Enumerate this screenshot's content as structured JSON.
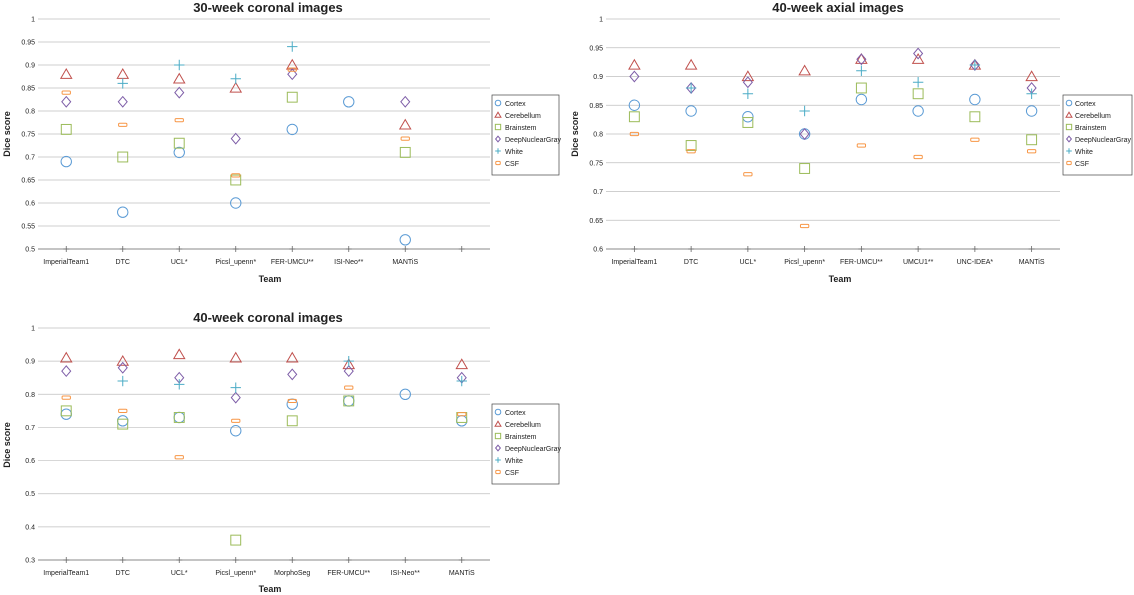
{
  "chart_data": [
    {
      "type": "scatter",
      "title": "30-week coronal images",
      "xlabel": "Team",
      "ylabel": "Dice score",
      "ylim": [
        0.5,
        1
      ],
      "yticks": [
        0.5,
        0.55,
        0.6,
        0.65,
        0.7,
        0.75,
        0.8,
        0.85,
        0.9,
        0.95,
        1
      ],
      "categories": [
        "ImperialTeam1",
        "DTC",
        "UCL*",
        "Picsl_upenn*",
        "FER-UMCU**",
        "ISI-Neo**",
        "MANTiS"
      ],
      "series": [
        {
          "name": "Cortex",
          "values": [
            0.69,
            0.58,
            0.71,
            0.6,
            0.76,
            0.82,
            0.52
          ]
        },
        {
          "name": "Cerebellum",
          "values": [
            0.88,
            0.88,
            0.87,
            0.85,
            0.9,
            null,
            0.77
          ]
        },
        {
          "name": "Brainstem",
          "values": [
            0.76,
            0.7,
            0.73,
            0.65,
            0.83,
            null,
            0.71
          ]
        },
        {
          "name": "DeepNuclearGray",
          "values": [
            0.82,
            0.82,
            0.84,
            0.74,
            0.88,
            null,
            0.82
          ]
        },
        {
          "name": "White",
          "values": [
            null,
            0.86,
            0.9,
            0.87,
            0.94,
            null,
            null
          ]
        },
        {
          "name": "CSF",
          "values": [
            0.84,
            0.77,
            0.78,
            0.66,
            0.89,
            null,
            0.74
          ]
        }
      ]
    },
    {
      "type": "scatter",
      "title": "40-week axial images",
      "xlabel": "Team",
      "ylabel": "Dice score",
      "ylim": [
        0.6,
        1
      ],
      "yticks": [
        0.6,
        0.65,
        0.7,
        0.75,
        0.8,
        0.85,
        0.9,
        0.95,
        1
      ],
      "categories": [
        "ImperialTeam1",
        "DTC",
        "UCL*",
        "Picsl_upenn*",
        "FER-UMCU**",
        "UMCU1**",
        "UNC-IDEA*",
        "MANTiS"
      ],
      "series": [
        {
          "name": "Cortex",
          "values": [
            0.85,
            0.84,
            0.83,
            0.8,
            0.86,
            0.84,
            0.86,
            0.84
          ]
        },
        {
          "name": "Cerebellum",
          "values": [
            0.92,
            0.92,
            0.9,
            0.91,
            0.93,
            0.93,
            0.92,
            0.9
          ]
        },
        {
          "name": "Brainstem",
          "values": [
            0.83,
            0.78,
            0.82,
            0.74,
            0.88,
            0.87,
            0.83,
            0.79
          ]
        },
        {
          "name": "DeepNuclearGray",
          "values": [
            0.9,
            0.88,
            0.89,
            0.8,
            0.93,
            0.94,
            0.92,
            0.88
          ]
        },
        {
          "name": "White",
          "values": [
            null,
            0.88,
            0.87,
            0.84,
            0.91,
            0.89,
            0.92,
            0.87
          ]
        },
        {
          "name": "CSF",
          "values": [
            0.8,
            0.77,
            0.73,
            0.64,
            0.78,
            0.76,
            0.79,
            0.77
          ]
        }
      ]
    },
    {
      "type": "scatter",
      "title": "40-week coronal images",
      "xlabel": "Team",
      "ylabel": "Dice score",
      "ylim": [
        0.3,
        1
      ],
      "yticks": [
        0.3,
        0.4,
        0.5,
        0.6,
        0.7,
        0.8,
        0.9,
        1
      ],
      "categories": [
        "ImperialTeam1",
        "DTC",
        "UCL*",
        "Picsl_upenn*",
        "MorphoSeg",
        "FER-UMCU**",
        "ISI-Neo**",
        "MANTiS"
      ],
      "series": [
        {
          "name": "Cortex",
          "values": [
            0.74,
            0.72,
            0.73,
            0.69,
            0.77,
            0.78,
            0.8,
            0.72
          ]
        },
        {
          "name": "Cerebellum",
          "values": [
            0.91,
            0.9,
            0.92,
            0.91,
            0.91,
            0.89,
            null,
            0.89
          ]
        },
        {
          "name": "Brainstem",
          "values": [
            0.75,
            0.71,
            0.73,
            0.36,
            0.72,
            0.78,
            null,
            0.73
          ]
        },
        {
          "name": "DeepNuclearGray",
          "values": [
            0.87,
            0.88,
            0.85,
            0.79,
            0.86,
            0.87,
            null,
            0.85
          ]
        },
        {
          "name": "White",
          "values": [
            null,
            0.84,
            0.83,
            0.82,
            null,
            0.9,
            null,
            0.84
          ]
        },
        {
          "name": "CSF",
          "values": [
            0.79,
            0.75,
            0.61,
            0.72,
            0.78,
            0.82,
            null,
            0.74
          ]
        }
      ]
    }
  ],
  "legend": {
    "items": [
      "Cortex",
      "Cerebellum",
      "Brainstem",
      "DeepNuclearGray",
      "White",
      "CSF"
    ]
  },
  "colors": {
    "Cortex": "#5b9bd5",
    "Cerebellum": "#c0504d",
    "Brainstem": "#9bbb59",
    "DeepNuclearGray": "#7e5ea8",
    "White": "#4bacc6",
    "CSF": "#f79646",
    "grid": "#bfbfbf",
    "axis": "#888888"
  },
  "icons": {
    "Cortex": "circle-icon",
    "Cerebellum": "triangle-icon",
    "Brainstem": "square-icon",
    "DeepNuclearGray": "diamond-icon",
    "White": "plus-icon",
    "CSF": "dash-icon"
  }
}
